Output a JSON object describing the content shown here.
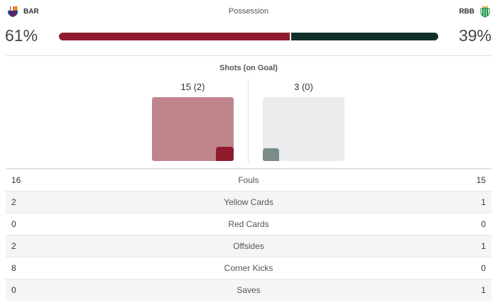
{
  "teams": {
    "home": {
      "abbr": "BAR",
      "color": "#8e1c2c",
      "crest_icon": "barcelona-crest-icon"
    },
    "away": {
      "abbr": "RBB",
      "color": "#12302a",
      "crest_icon": "real-betis-crest-icon"
    }
  },
  "possession": {
    "label": "Possession",
    "home_pct": "61%",
    "away_pct": "39%",
    "home_value": 61,
    "away_value": 39
  },
  "shots": {
    "title": "Shots (on Goal)",
    "home": {
      "display": "15 (2)",
      "total": 15,
      "on_goal": 2
    },
    "away": {
      "display": "3 (0)",
      "total": 3,
      "on_goal": 0
    }
  },
  "stats": [
    {
      "label": "Fouls",
      "home": "16",
      "away": "15"
    },
    {
      "label": "Yellow Cards",
      "home": "2",
      "away": "1"
    },
    {
      "label": "Red Cards",
      "home": "0",
      "away": "0"
    },
    {
      "label": "Offsides",
      "home": "2",
      "away": "1"
    },
    {
      "label": "Corner Kicks",
      "home": "8",
      "away": "0"
    },
    {
      "label": "Saves",
      "home": "0",
      "away": "1"
    }
  ]
}
